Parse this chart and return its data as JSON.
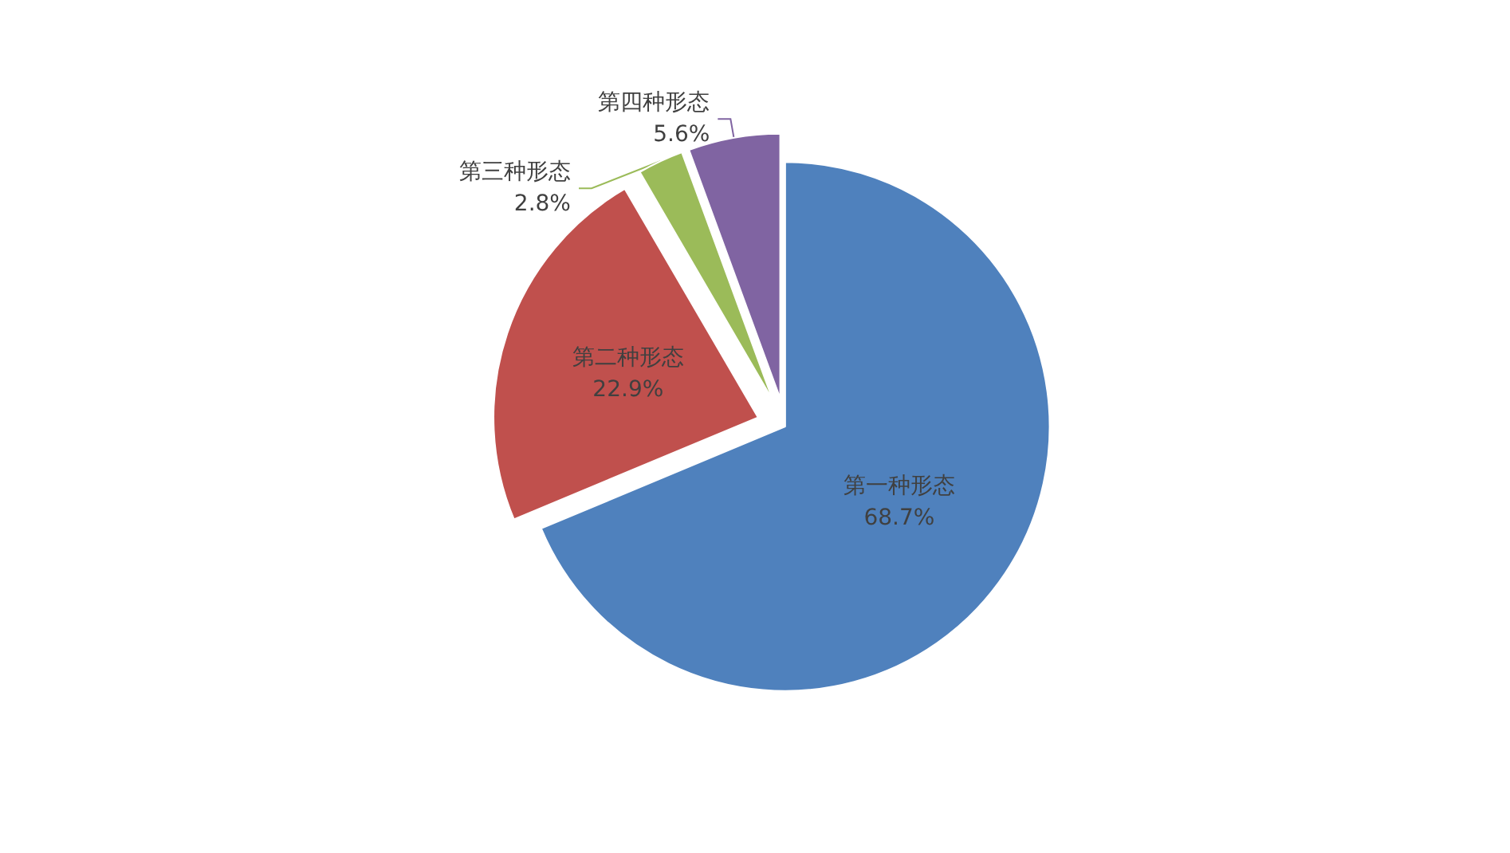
{
  "chart_data": {
    "type": "pie",
    "categories": [
      "第一种形态",
      "第二种形态",
      "第三种形态",
      "第四种形态"
    ],
    "values": [
      68.7,
      22.9,
      2.8,
      5.6
    ],
    "value_labels": [
      "68.7%",
      "22.9%",
      "2.8%",
      "5.6%"
    ],
    "colors": [
      "#4f81bd",
      "#c0504d",
      "#9bbb59",
      "#8064a2"
    ],
    "legend": false
  }
}
